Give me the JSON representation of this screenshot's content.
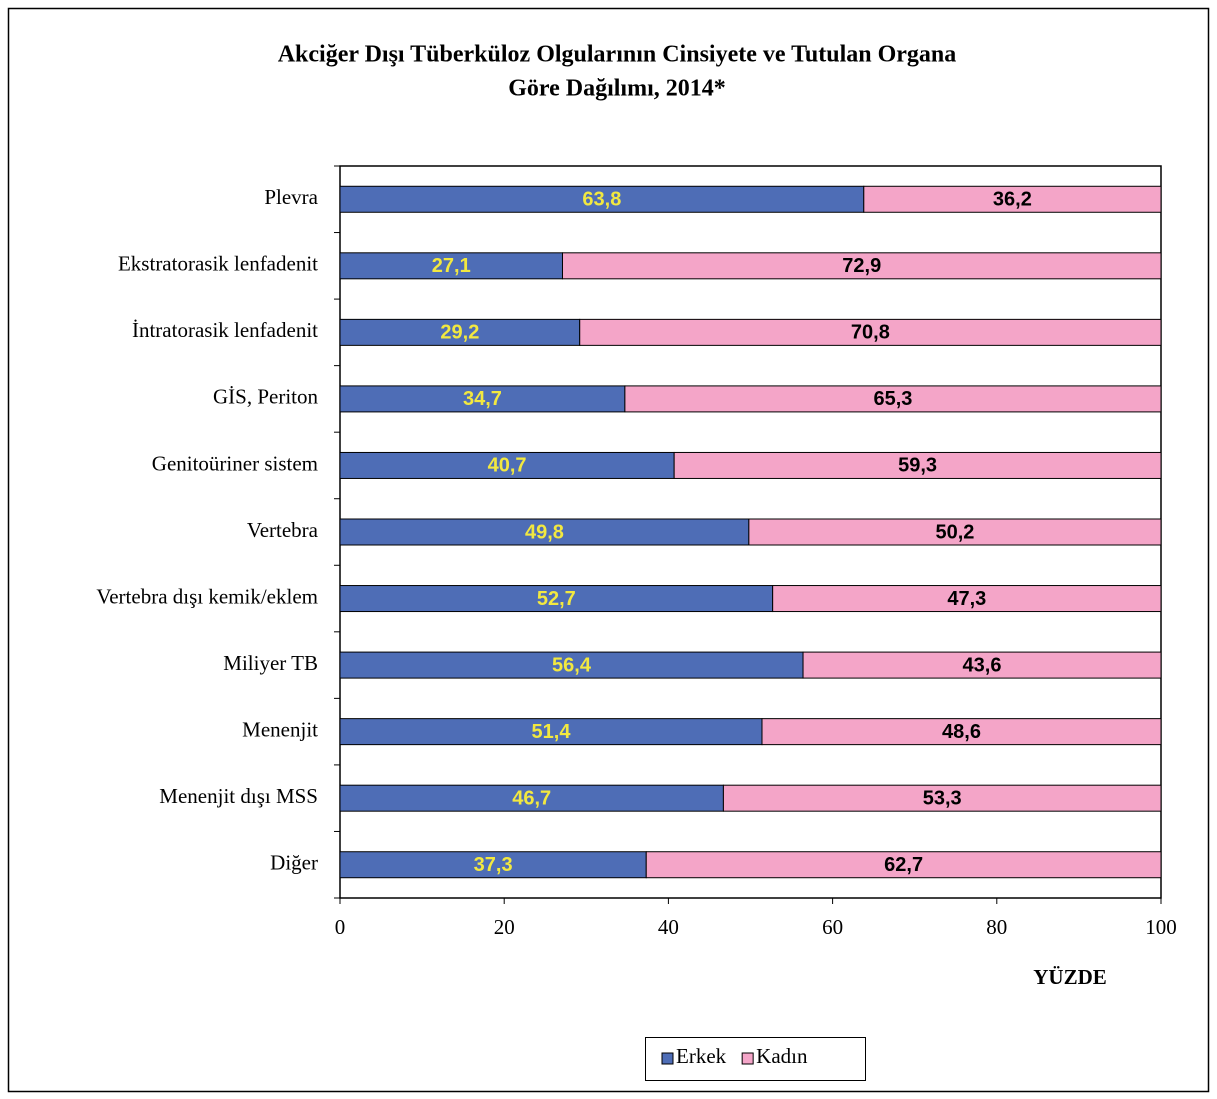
{
  "chart_data": {
    "type": "stacked-bar-horizontal",
    "title": [
      "Akciğer Dışı Tüberküloz  Olgularının Cinsiyete ve Tutulan Organa",
      "Göre Dağılımı, 2014*"
    ],
    "categories": [
      "Plevra",
      "Ekstratorasik lenfadenit",
      "İntratorasik lenfadenit",
      "GİS, Periton",
      "Genitoüriner sistem",
      "Vertebra",
      "Vertebra dışı kemik/eklem",
      "Miliyer TB",
      "Menenjit",
      "Menenjit dışı MSS",
      "Diğer"
    ],
    "series": [
      {
        "name": "Erkek",
        "color": "#4e6db6",
        "label_color": "#f2e840",
        "values": [
          63.8,
          27.1,
          29.2,
          34.7,
          40.7,
          49.8,
          52.7,
          56.4,
          51.4,
          46.7,
          37.3
        ],
        "value_labels": [
          "63,8",
          "27,1",
          "29,2",
          "34,7",
          "40,7",
          "49,8",
          "52,7",
          "56,4",
          "51,4",
          "46,7",
          "37,3"
        ]
      },
      {
        "name": "Kadın",
        "color": "#f4a5c8",
        "label_color": "#000000",
        "values": [
          36.2,
          72.9,
          70.8,
          65.3,
          59.3,
          50.2,
          47.3,
          43.6,
          48.6,
          53.3,
          62.7
        ],
        "value_labels": [
          "36,2",
          "72,9",
          "70,8",
          "65,3",
          "59,3",
          "50,2",
          "47,3",
          "43,6",
          "48,6",
          "53,3",
          "62,7"
        ]
      }
    ],
    "xlabel": "YÜZDE",
    "xlim": [
      0,
      100
    ],
    "xticks": [
      0,
      20,
      40,
      60,
      80,
      100
    ],
    "legend": "bottom"
  }
}
